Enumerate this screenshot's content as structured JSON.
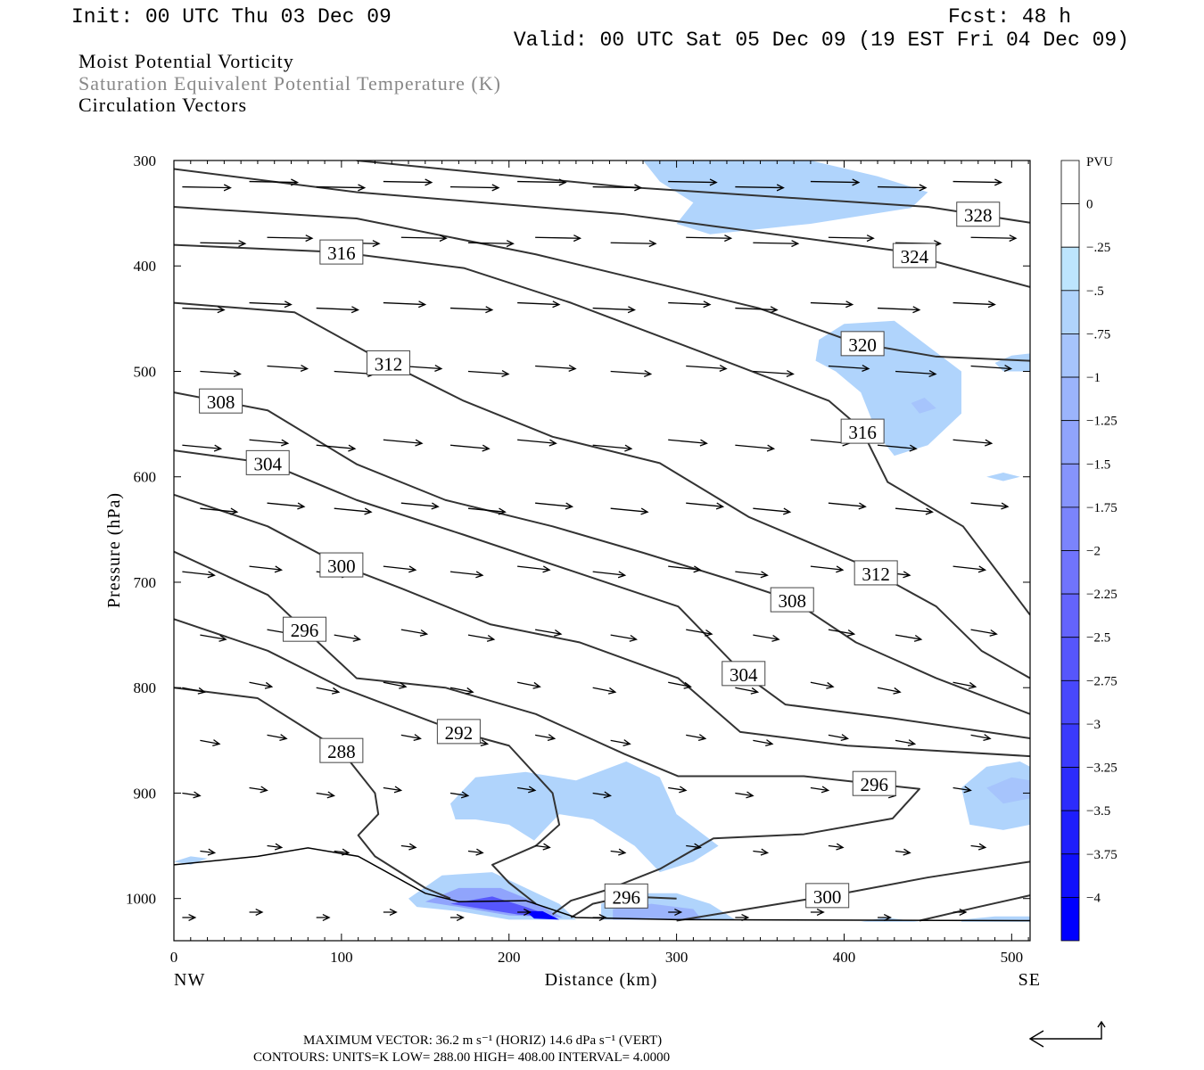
{
  "header": {
    "init": "Init: 00 UTC Thu 03 Dec 09",
    "fcst": "Fcst:   48 h",
    "valid": "Valid: 00 UTC Sat 05 Dec 09 (19 EST Fri 04 Dec 09)",
    "title1": "Moist Potential Vorticity",
    "title2": "Saturation Equivalent Potential Temperature (K)",
    "title3": "Circulation Vectors"
  },
  "footer": {
    "max_vector": "MAXIMUM VECTOR:  36.2 m s⁻¹ (HORIZ)         14.6 dPa s⁻¹ (VERT)",
    "contours": "CONTOURS:  UNITS=K  LOW=  288.00       HIGH=  408.00       INTERVAL=    4.0000"
  },
  "chart_data": {
    "type": "cross-section",
    "xlabel": "Distance (km)",
    "ylabel": "Pressure (hPa)",
    "xlim": [
      0,
      511
    ],
    "ylim": [
      300,
      1040
    ],
    "xticks": [
      "0",
      "100",
      "200",
      "300",
      "400",
      "500"
    ],
    "xtick_values": [
      0,
      100,
      200,
      300,
      400,
      500
    ],
    "yticks": [
      "300",
      "400",
      "500",
      "600",
      "700",
      "800",
      "900",
      "1000"
    ],
    "ytick_values": [
      300,
      400,
      500,
      600,
      700,
      800,
      900,
      1000
    ],
    "left_end": "NW",
    "right_end": "SE",
    "colorbar": {
      "title": "PVU",
      "labels": [
        "0",
        "-.25",
        "-.5",
        "-.75",
        "-1",
        "-1.25",
        "-1.5",
        "-1.75",
        "-2",
        "-2.25",
        "-2.5",
        "-2.75",
        "-3",
        "-3.25",
        "-3.5",
        "-3.75",
        "-4"
      ],
      "colors": [
        "#ffffff",
        "#ffffff",
        "#bde5fd",
        "#b0d4fc",
        "#a6c4fc",
        "#9bb4fc",
        "#90a4fc",
        "#8694fc",
        "#7b84fc",
        "#7074fc",
        "#6464fc",
        "#5656fc",
        "#4848fc",
        "#3a3afc",
        "#2c2cfc",
        "#1e1efc",
        "#1010fc",
        "#0000ff"
      ]
    },
    "pv_regions": [
      {
        "value": -0.3,
        "points": [
          [
            280,
            300
          ],
          [
            380,
            300
          ],
          [
            420,
            315
          ],
          [
            450,
            330
          ],
          [
            440,
            345
          ],
          [
            380,
            360
          ],
          [
            320,
            370
          ],
          [
            300,
            360
          ],
          [
            310,
            340
          ],
          [
            290,
            320
          ]
        ]
      },
      {
        "value": -0.3,
        "points": [
          [
            385,
            470
          ],
          [
            400,
            455
          ],
          [
            430,
            452
          ],
          [
            445,
            470
          ],
          [
            470,
            500
          ],
          [
            470,
            540
          ],
          [
            450,
            570
          ],
          [
            430,
            580
          ],
          [
            420,
            560
          ],
          [
            410,
            520
          ],
          [
            395,
            500
          ],
          [
            383,
            490
          ]
        ]
      },
      {
        "value": -0.6,
        "points": [
          [
            440,
            530
          ],
          [
            448,
            525
          ],
          [
            455,
            535
          ],
          [
            445,
            540
          ]
        ]
      },
      {
        "value": -0.3,
        "points": [
          [
            165,
            910
          ],
          [
            180,
            885
          ],
          [
            210,
            880
          ],
          [
            240,
            888
          ],
          [
            270,
            870
          ],
          [
            290,
            885
          ],
          [
            300,
            920
          ],
          [
            325,
            950
          ],
          [
            310,
            965
          ],
          [
            290,
            975
          ],
          [
            275,
            950
          ],
          [
            250,
            925
          ],
          [
            230,
            920
          ],
          [
            215,
            945
          ],
          [
            200,
            930
          ],
          [
            180,
            925
          ],
          [
            168,
            925
          ]
        ]
      },
      {
        "value": -0.3,
        "points": [
          [
            470,
            895
          ],
          [
            485,
            875
          ],
          [
            505,
            870
          ],
          [
            511,
            875
          ],
          [
            511,
            930
          ],
          [
            495,
            935
          ],
          [
            475,
            930
          ]
        ]
      },
      {
        "value": -0.6,
        "points": [
          [
            485,
            895
          ],
          [
            500,
            885
          ],
          [
            511,
            888
          ],
          [
            511,
            905
          ],
          [
            495,
            910
          ]
        ]
      },
      {
        "value": -0.3,
        "points": [
          [
            140,
            1000
          ],
          [
            160,
            978
          ],
          [
            190,
            975
          ],
          [
            210,
            990
          ],
          [
            230,
            1005
          ],
          [
            240,
            1020
          ],
          [
            200,
            1020
          ],
          [
            170,
            1012
          ],
          [
            145,
            1008
          ]
        ]
      },
      {
        "value": -1.2,
        "points": [
          [
            150,
            1003
          ],
          [
            170,
            990
          ],
          [
            195,
            990
          ],
          [
            215,
            1003
          ],
          [
            232,
            1018
          ],
          [
            200,
            1016
          ],
          [
            170,
            1008
          ]
        ]
      },
      {
        "value": -2.5,
        "points": [
          [
            165,
            1005
          ],
          [
            190,
            998
          ],
          [
            210,
            1008
          ],
          [
            228,
            1018
          ],
          [
            205,
            1015
          ]
        ]
      },
      {
        "value": -4.1,
        "points": [
          [
            210,
            1012
          ],
          [
            220,
            1012
          ],
          [
            230,
            1020
          ],
          [
            215,
            1019
          ]
        ]
      },
      {
        "value": -0.3,
        "points": [
          [
            255,
            1005
          ],
          [
            270,
            995
          ],
          [
            300,
            995
          ],
          [
            320,
            1005
          ],
          [
            335,
            1020
          ],
          [
            255,
            1020
          ]
        ]
      },
      {
        "value": -1.0,
        "points": [
          [
            262,
            1010
          ],
          [
            285,
            1005
          ],
          [
            310,
            1010
          ],
          [
            315,
            1020
          ],
          [
            262,
            1020
          ]
        ]
      },
      {
        "value": -0.3,
        "points": [
          [
            410,
            1022
          ],
          [
            425,
            1018
          ],
          [
            445,
            1022
          ]
        ]
      },
      {
        "value": -0.3,
        "points": [
          [
            470,
            1020
          ],
          [
            490,
            1017
          ],
          [
            511,
            1017
          ],
          [
            511,
            1022
          ],
          [
            470,
            1022
          ]
        ]
      },
      {
        "value": -0.3,
        "points": [
          [
            490,
            492
          ],
          [
            500,
            485
          ],
          [
            511,
            483
          ],
          [
            511,
            500
          ],
          [
            495,
            500
          ]
        ]
      },
      {
        "value": -0.3,
        "points": [
          [
            485,
            600
          ],
          [
            495,
            596
          ],
          [
            505,
            600
          ],
          [
            495,
            604
          ]
        ]
      },
      {
        "value": -0.3,
        "points": [
          [
            0,
            965
          ],
          [
            10,
            960
          ],
          [
            20,
            962
          ],
          [
            10,
            968
          ]
        ]
      }
    ],
    "contours": [
      {
        "value": 328,
        "label": "328",
        "label_km": [
          480
        ],
        "points": [
          [
            109,
            300
          ],
          [
            269,
            325
          ],
          [
            450,
            344
          ],
          [
            511,
            359
          ]
        ]
      },
      {
        "value": 324,
        "label": "324",
        "label_km": [
          442
        ],
        "points": [
          [
            0,
            308
          ],
          [
            109,
            330
          ],
          [
            269,
            351
          ],
          [
            429,
            385
          ],
          [
            511,
            420
          ]
        ]
      },
      {
        "value": 320,
        "label": "320",
        "label_km": [
          411
        ],
        "points": [
          [
            0,
            344
          ],
          [
            109,
            355
          ],
          [
            216,
            389
          ],
          [
            349,
            440
          ],
          [
            407,
            473
          ],
          [
            455,
            486
          ],
          [
            511,
            490
          ]
        ]
      },
      {
        "value": 316,
        "label": "316",
        "label_km": [
          100,
          411
        ],
        "points": [
          [
            0,
            380
          ],
          [
            99,
            387
          ],
          [
            173,
            402
          ],
          [
            237,
            435
          ],
          [
            322,
            486
          ],
          [
            391,
            528
          ],
          [
            410,
            554
          ],
          [
            426,
            605
          ],
          [
            471,
            647
          ],
          [
            511,
            731
          ]
        ]
      },
      {
        "value": 312,
        "label": "312",
        "label_km": [
          128,
          419
        ],
        "points": [
          [
            0,
            435
          ],
          [
            72,
            444
          ],
          [
            120,
            486
          ],
          [
            173,
            528
          ],
          [
            226,
            562
          ],
          [
            290,
            587
          ],
          [
            343,
            638
          ],
          [
            407,
            681
          ],
          [
            455,
            723
          ],
          [
            482,
            765
          ],
          [
            511,
            791
          ]
        ]
      },
      {
        "value": 308,
        "label": "308",
        "label_km": [
          28,
          369
        ],
        "points": [
          [
            0,
            520
          ],
          [
            56,
            537
          ],
          [
            109,
            588
          ],
          [
            162,
            622
          ],
          [
            226,
            647
          ],
          [
            280,
            672
          ],
          [
            333,
            698
          ],
          [
            369,
            717
          ],
          [
            407,
            757
          ],
          [
            455,
            791
          ],
          [
            511,
            825
          ]
        ]
      },
      {
        "value": 304,
        "label": "304",
        "label_km": [
          56,
          340
        ],
        "points": [
          [
            0,
            575
          ],
          [
            56,
            587
          ],
          [
            109,
            622
          ],
          [
            173,
            655
          ],
          [
            237,
            689
          ],
          [
            301,
            723
          ],
          [
            340,
            787
          ],
          [
            365,
            816
          ],
          [
            429,
            829
          ],
          [
            511,
            848
          ]
        ]
      },
      {
        "value": 300,
        "label": "300",
        "label_km": [
          100
        ],
        "points": [
          [
            0,
            617
          ],
          [
            56,
            647
          ],
          [
            100,
            684
          ],
          [
            136,
            706
          ],
          [
            189,
            740
          ],
          [
            242,
            757
          ],
          [
            301,
            791
          ],
          [
            338,
            842
          ],
          [
            402,
            855
          ],
          [
            511,
            865
          ]
        ]
      },
      {
        "value": 296,
        "label": "296",
        "label_km": [
          78,
          418
        ],
        "points": [
          [
            0,
            671
          ],
          [
            56,
            712
          ],
          [
            78,
            745
          ],
          [
            109,
            791
          ],
          [
            162,
            800
          ],
          [
            216,
            825
          ],
          [
            269,
            863
          ],
          [
            301,
            884
          ],
          [
            376,
            884
          ],
          [
            445,
            896
          ],
          [
            429,
            924
          ],
          [
            376,
            939
          ],
          [
            322,
            943
          ],
          [
            290,
            972
          ],
          [
            258,
            992
          ],
          [
            237,
            1002
          ],
          [
            226,
            1015
          ]
        ]
      },
      {
        "value": 292,
        "label": "292",
        "label_km": [
          170
        ],
        "points": [
          [
            0,
            735
          ],
          [
            56,
            765
          ],
          [
            100,
            800
          ],
          [
            150,
            830
          ],
          [
            170,
            842
          ],
          [
            200,
            855
          ],
          [
            226,
            900
          ],
          [
            230,
            930
          ],
          [
            216,
            950
          ],
          [
            190,
            968
          ],
          [
            200,
            985
          ],
          [
            216,
            1005
          ]
        ]
      },
      {
        "value": 288,
        "label": "288",
        "label_km": [
          100
        ],
        "points": [
          [
            0,
            800
          ],
          [
            50,
            810
          ],
          [
            80,
            840
          ],
          [
            100,
            860
          ],
          [
            120,
            900
          ],
          [
            122,
            920
          ],
          [
            110,
            940
          ],
          [
            120,
            960
          ],
          [
            150,
            990
          ],
          [
            165,
            1000
          ]
        ]
      },
      {
        "value": 300,
        "label": "300",
        "label_km": [
          390
        ],
        "points": [
          [
            300,
            1021
          ],
          [
            350,
            1008
          ],
          [
            400,
            995
          ],
          [
            450,
            980
          ],
          [
            511,
            965
          ]
        ]
      },
      {
        "value": 296,
        "label": "296",
        "label_km": [
          270
        ],
        "points": [
          [
            237,
            1018
          ],
          [
            250,
            1005
          ],
          [
            270,
            998
          ],
          [
            300,
            1000
          ]
        ]
      },
      {
        "value": 304,
        "label": "",
        "label_km": [],
        "points": [
          [
            445,
            1021
          ],
          [
            480,
            1008
          ],
          [
            511,
            997
          ]
        ]
      }
    ],
    "ground": [
      [
        0,
        968
      ],
      [
        50,
        960
      ],
      [
        80,
        952
      ],
      [
        110,
        960
      ],
      [
        150,
        995
      ],
      [
        170,
        1003
      ],
      [
        210,
        1002
      ],
      [
        240,
        1018
      ],
      [
        300,
        1020
      ],
      [
        511,
        1021
      ]
    ],
    "vectors": {
      "km": [
        5,
        45,
        85,
        125,
        165,
        205,
        250,
        295,
        335,
        380,
        420,
        465
      ],
      "levels": [
        325,
        378,
        440,
        500,
        570,
        630,
        690,
        750,
        800,
        850,
        900,
        955,
        1018
      ],
      "u": [
        30,
        28,
        26,
        25,
        24,
        23,
        20,
        16,
        14,
        12,
        11,
        9,
        8
      ],
      "w": [
        0.5,
        0.5,
        1,
        1.5,
        2,
        2,
        2,
        2.5,
        2.5,
        2,
        1.5,
        1,
        0
      ]
    },
    "reference_vector": {
      "u": 36.2,
      "w": 14.6
    }
  }
}
